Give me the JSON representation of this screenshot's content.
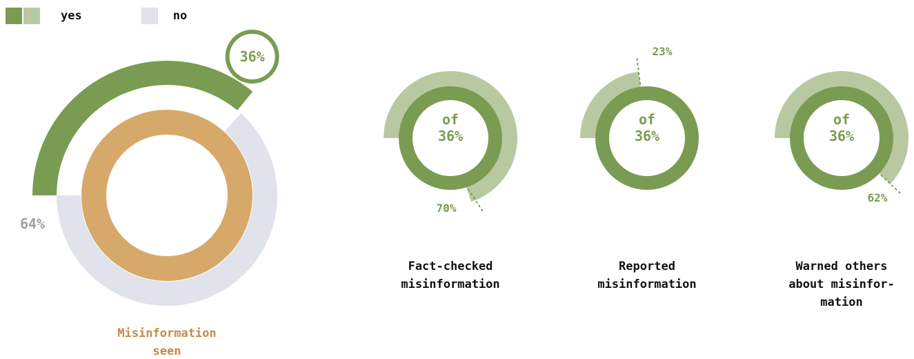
{
  "legend": {
    "yes_label": "yes",
    "no_label": "no",
    "yes_colors": [
      "#7a9c52",
      "#b8c9a1"
    ],
    "no_color": "#e0e2ec"
  },
  "chart_data": {
    "type": "pie",
    "colors": {
      "yes_dark": "#7a9c52",
      "yes_light": "#b8c9a1",
      "no": "#e0e2ec",
      "core": "#d6a96a",
      "no_text": "#a0a0a0",
      "title_main": "#c28b45",
      "title_small": "#111111"
    },
    "main": {
      "title": "Misinformation\nseen",
      "yes": 36,
      "no": 64,
      "yes_label": "36%",
      "no_label": "64%"
    },
    "sub": [
      {
        "title": "Fact-checked\nmisinformation",
        "value": 70,
        "value_label": "70%",
        "center_label": "of\n36%"
      },
      {
        "title": "Reported\nmisinformation",
        "value": 23,
        "value_label": "23%",
        "center_label": "of\n36%"
      },
      {
        "title": "Warned others\nabout misinfor-\nmation",
        "value": 62,
        "value_label": "62%",
        "center_label": "of\n36%"
      }
    ]
  }
}
